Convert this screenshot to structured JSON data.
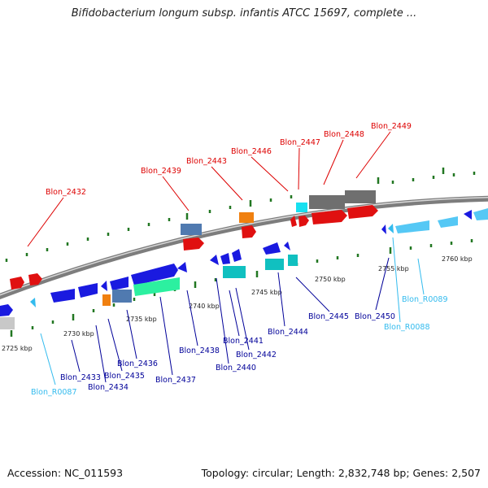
{
  "title": "Bifidobacterium longum subsp. infantis ATCC 15697, complete ...",
  "footer": {
    "accession": "Accession: NC_011593",
    "summary": "Topology: circular; Length: 2,832,748 bp; Genes: 2,507"
  },
  "colors": {
    "forward_label": "#dd0000",
    "reverse_label": "#000099",
    "rna_label": "#33bbee",
    "backbone": "#8a8a8a",
    "tick": "#227722"
  },
  "scale": {
    "ticks": [
      "2725 kbp",
      "2730 kbp",
      "2735 kbp",
      "2740 kbp",
      "2745 kbp",
      "2750 kbp",
      "2755 kbp",
      "2760 kbp"
    ]
  },
  "labels": {
    "top": [
      "Blon_2432",
      "Blon_2439",
      "Blon_2443",
      "Blon_2446",
      "Blon_2447",
      "Blon_2448",
      "Blon_2449"
    ],
    "bottom": [
      "Blon_R0087",
      "Blon_2433",
      "Blon_2434",
      "Blon_2435",
      "Blon_2436",
      "Blon_2437",
      "Blon_2438",
      "Blon_2440",
      "Blon_2441",
      "Blon_2442",
      "Blon_2444",
      "Blon_2445",
      "Blon_2450",
      "Blon_R0088",
      "Blon_R0089"
    ]
  }
}
